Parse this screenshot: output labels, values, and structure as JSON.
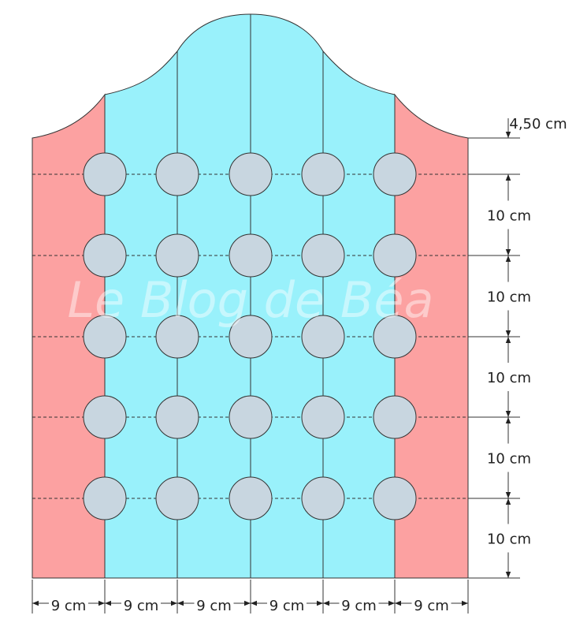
{
  "watermark": "Le Blog de Béa",
  "vertical_dimensions": [
    "4,50 cm",
    "10 cm",
    "10 cm",
    "10 cm",
    "10 cm",
    "10 cm"
  ],
  "horizontal_dimensions": [
    "9 cm",
    "9 cm",
    "9 cm",
    "9 cm",
    "9 cm",
    "9 cm"
  ]
}
